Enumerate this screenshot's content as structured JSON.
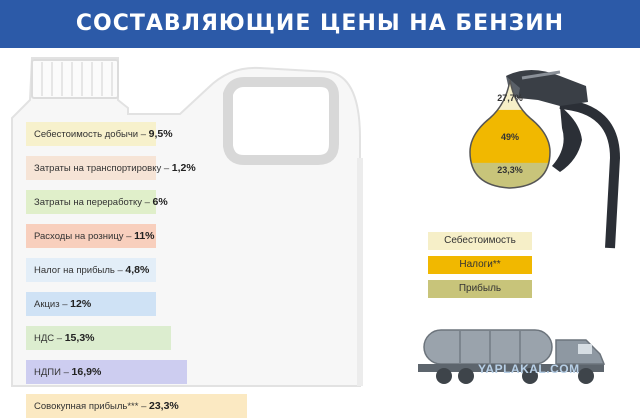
{
  "header": {
    "title": "СОСТАВЛЯЮЩИЕ ЦЕНЫ НА БЕНЗИН"
  },
  "colors": {
    "header_bg": "#2c5aa8",
    "cost": "#f6efc8",
    "taxes": "#f1b800",
    "profit": "#c8c47a"
  },
  "chart_data": [
    {
      "type": "bar",
      "orientation": "horizontal",
      "categories": [
        "Себестоимость добычи",
        "Затраты на транспортировку",
        "Затраты на переработку",
        "Расходы на розницу",
        "Налог на прибыль",
        "Акциз",
        "НДС",
        "НДПИ",
        "Совокупная прибыль***"
      ],
      "values": [
        9.5,
        1.2,
        6,
        11,
        4.8,
        12,
        15.3,
        16.9,
        23.3
      ],
      "value_labels": [
        "9,5%",
        "1,2%",
        "6%",
        "11%",
        "4,8%",
        "12%",
        "15,3%",
        "16,9%",
        "23,3%"
      ],
      "colors": [
        "#f7f1cc",
        "#f6e4d6",
        "#e0efca",
        "#f8cfbd",
        "#e3eef8",
        "#cfe2f5",
        "#dcedcf",
        "#cdcdf0",
        "#fbe9c2"
      ]
    },
    {
      "type": "pie",
      "labels": [
        "Себестоимость",
        "Налоги**",
        "Прибыль"
      ],
      "values": [
        27.7,
        49,
        23.3
      ],
      "value_labels": [
        "27,7%",
        "49%",
        "23,3%"
      ],
      "colors": [
        "#f6efc8",
        "#f1b800",
        "#c8c47a"
      ],
      "legend": "right"
    }
  ],
  "watermark": "YAPLAKAL.COM"
}
